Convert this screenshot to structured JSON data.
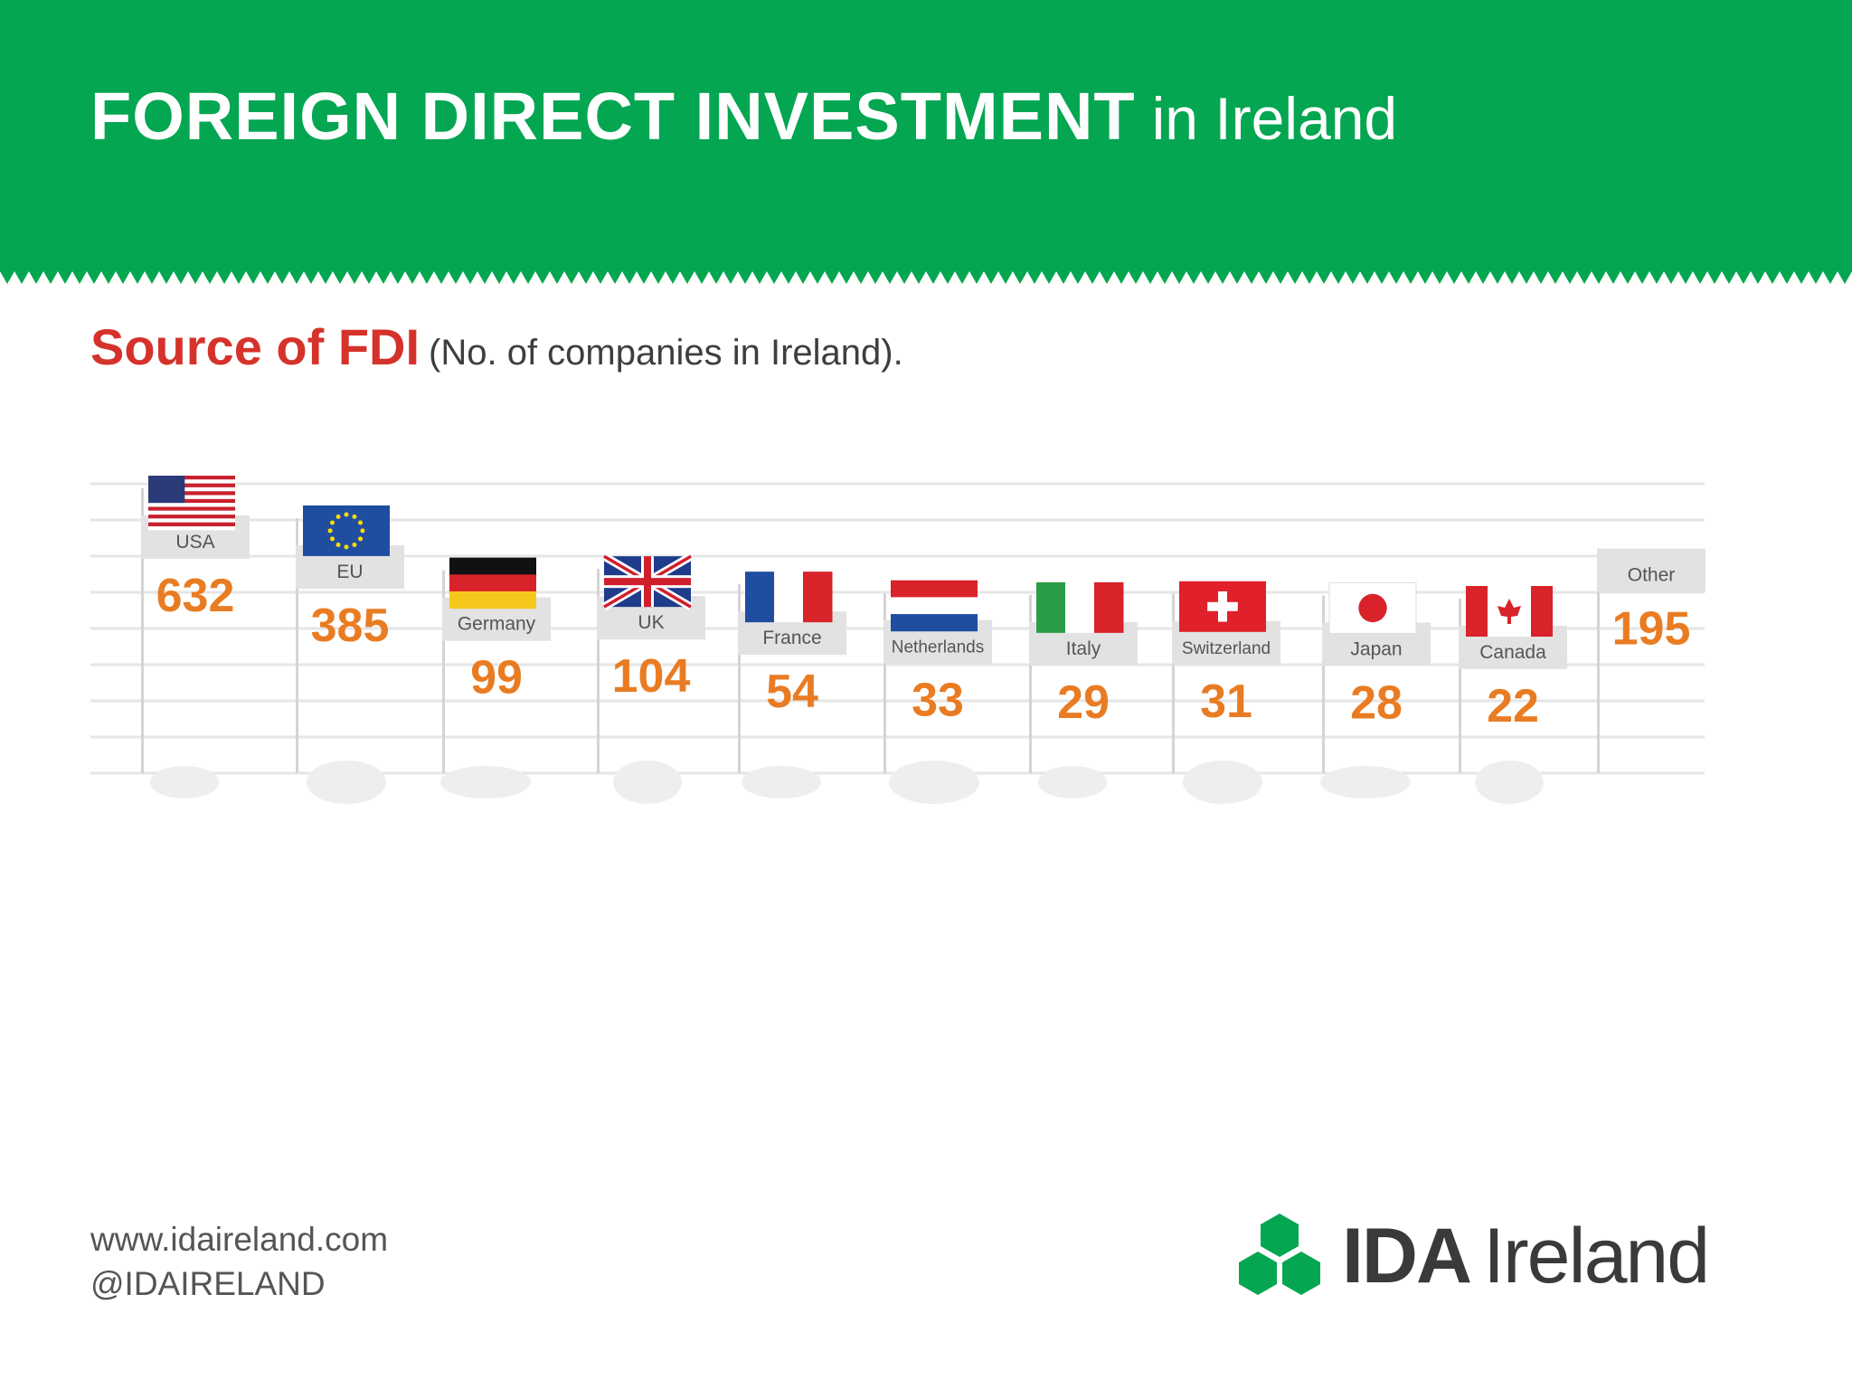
{
  "header": {
    "title_bold": "FOREIGN DIRECT INVESTMENT",
    "title_rest": "in Ireland"
  },
  "subheading": {
    "main": "Source of FDI",
    "note": "(No. of companies in Ireland)."
  },
  "chart_data": {
    "type": "bar",
    "title": "Source of FDI",
    "subtitle": "(No. of companies in Ireland).",
    "categories": [
      "USA",
      "EU",
      "Germany",
      "UK",
      "France",
      "Netherlands",
      "Italy",
      "Switzerland",
      "Japan",
      "Canada",
      "Other"
    ],
    "values": [
      632,
      385,
      99,
      104,
      54,
      33,
      29,
      31,
      28,
      22,
      195
    ],
    "flags": [
      "usa-flag",
      "eu-flag",
      "germany-flag",
      "uk-flag",
      "france-flag",
      "netherlands-flag",
      "italy-flag",
      "switzerland-flag",
      "japan-flag",
      "canada-flag",
      "none"
    ],
    "value_color": "#e97c23",
    "grid": true,
    "legend": "none"
  },
  "footer": {
    "url": "www.idaireland.com",
    "handle": "@IDAIRELAND"
  },
  "logo": {
    "name_bold": "IDA",
    "name_rest": "Ireland",
    "icon": "hexagon-cluster-icon",
    "color": "#04a651"
  },
  "colors": {
    "banner": "#04a651",
    "heading_red": "#d5322b",
    "value_orange": "#e97c23"
  }
}
